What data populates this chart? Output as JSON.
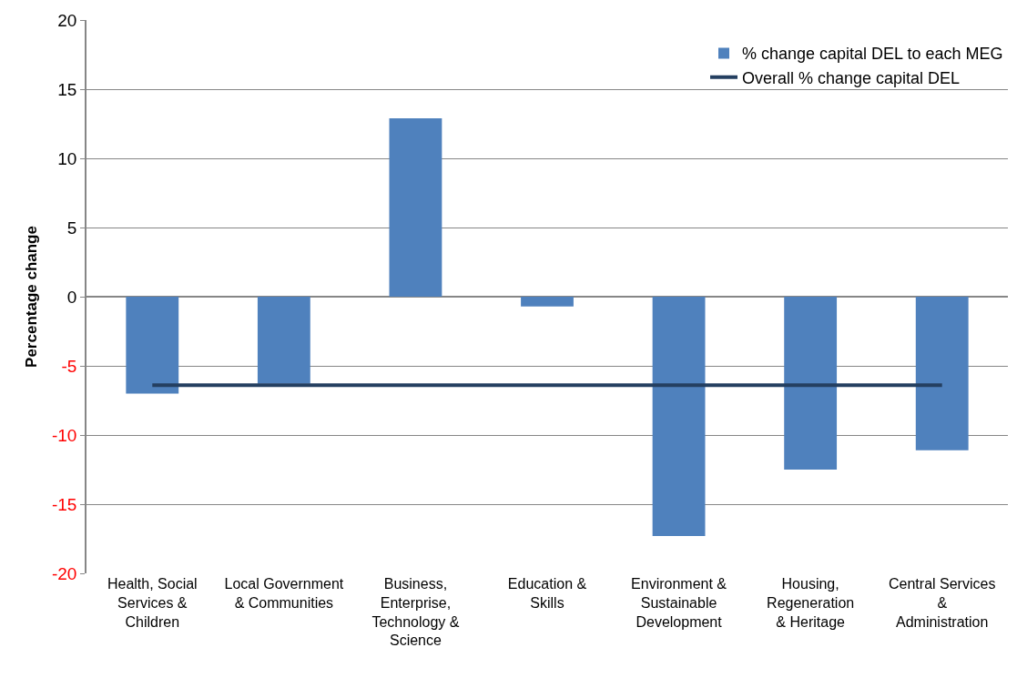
{
  "chart_data": {
    "type": "bar",
    "ylabel": "Percentage change",
    "categories": [
      "Health, Social Services & Children",
      "Local Government & Communities",
      "Business, Enterprise, Technology & Science",
      "Education & Skills",
      "Environment & Sustainable Development",
      "Housing, Regeneration & Heritage",
      "Central Services & Administration"
    ],
    "series": [
      {
        "name": "% change capital DEL to each MEG",
        "color": "#4f81bd",
        "values": [
          -7.0,
          -6.3,
          12.9,
          -0.7,
          -17.3,
          -12.5,
          -11.1
        ]
      },
      {
        "name": "Overall % change capital DEL",
        "type": "line",
        "color": "#243f60",
        "values": [
          -6.4,
          -6.4,
          -6.4,
          -6.4,
          -6.4,
          -6.4,
          -6.4
        ]
      }
    ],
    "ylim": [
      -20,
      20
    ],
    "yticks": [
      -20,
      -15,
      -10,
      -5,
      0,
      5,
      10,
      15,
      20
    ],
    "grid": "y",
    "legend": "top right"
  }
}
